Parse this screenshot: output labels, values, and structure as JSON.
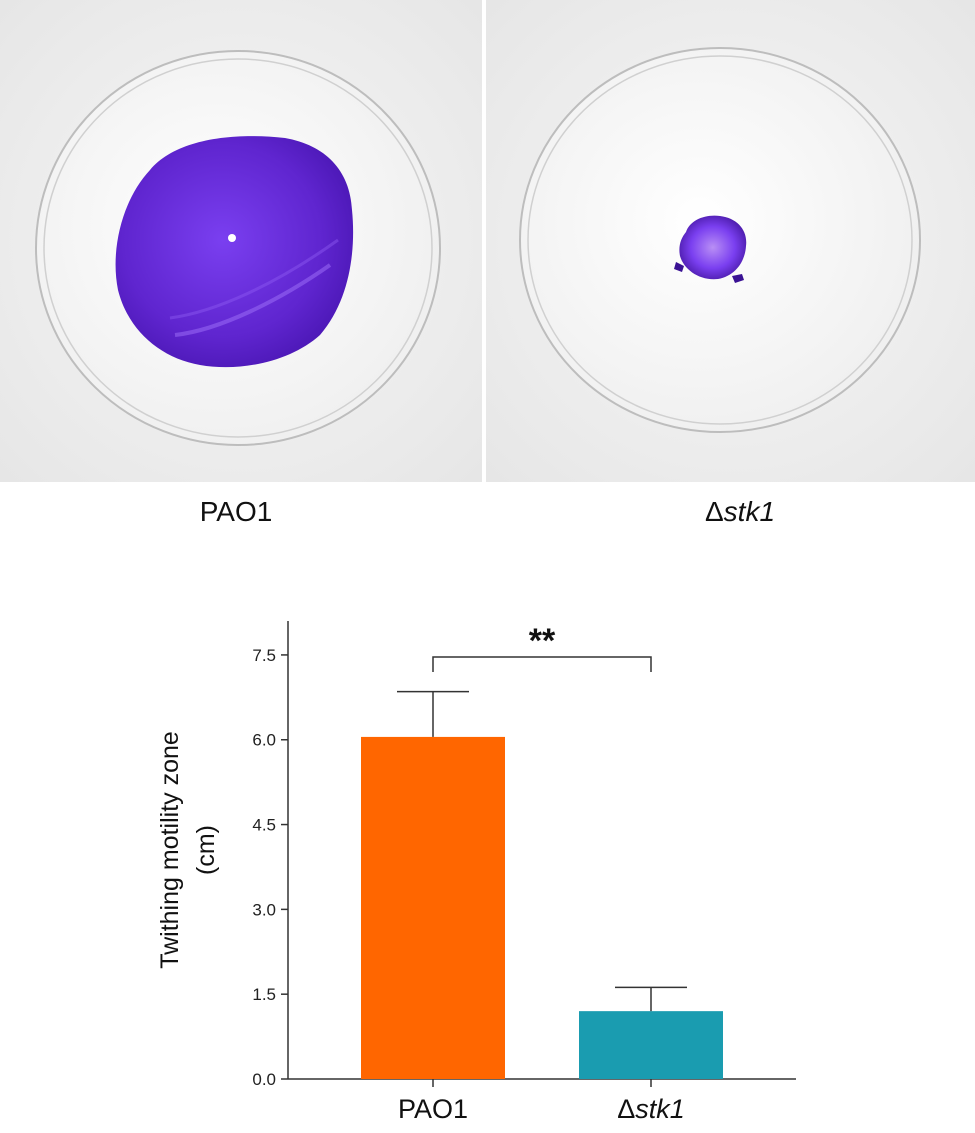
{
  "photos": {
    "left_label": "PAO1",
    "right_label_symbol": "Δ",
    "right_label_gene": "stk1"
  },
  "colors": {
    "stain_purple": "#6a2fd6",
    "bar_pao1": "#ff6600",
    "bar_stk1": "#1a9cb0"
  },
  "chart_data": {
    "type": "bar",
    "categories": [
      {
        "prefix": "",
        "name": "PAO1",
        "italic_name": false
      },
      {
        "prefix": "Δ",
        "name": "stk1",
        "italic_name": true
      }
    ],
    "values": [
      6.05,
      1.2
    ],
    "error": [
      0.8,
      0.42
    ],
    "colors": [
      "#ff6600",
      "#1a9cb0"
    ],
    "ylabel_line1": "Twithing motility zone",
    "ylabel_line2": "(cm)",
    "ylim": [
      0,
      8.1
    ],
    "yticks": [
      "0.0",
      "1.5",
      "3.0",
      "4.5",
      "6.0",
      "7.5"
    ],
    "ytick_values": [
      0,
      1.5,
      3.0,
      4.5,
      6.0,
      7.5
    ],
    "significance": {
      "label": "**",
      "between": [
        0,
        1
      ]
    },
    "grid": false
  }
}
